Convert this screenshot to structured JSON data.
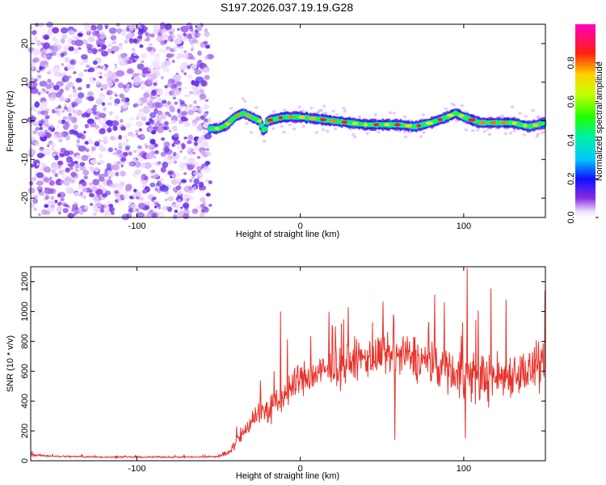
{
  "title": "S197.2026.037.19.19.G28",
  "chart_data": [
    {
      "type": "heatmap",
      "name": "spectrogram",
      "xlabel": "Height of straight line (km)",
      "ylabel": "Frequency (Hz)",
      "xlim": [
        -165,
        150
      ],
      "ylim": [
        -25,
        25
      ],
      "xticks": [
        -100,
        0,
        100
      ],
      "yticks": [
        -20,
        -10,
        0,
        10,
        20
      ],
      "noise_region_x": [
        -165,
        -55
      ],
      "signal_region_x": [
        -55,
        150
      ],
      "signal_ridge": {
        "x": [
          -55,
          -50,
          -45,
          -40,
          -35,
          -30,
          -25,
          -22,
          -20,
          -15,
          -10,
          -5,
          0,
          10,
          20,
          30,
          40,
          50,
          60,
          70,
          80,
          90,
          95,
          100,
          110,
          120,
          130,
          140,
          145,
          150
        ],
        "freq": [
          -2,
          -2,
          -1,
          1,
          2,
          1,
          0,
          -3,
          0,
          0.5,
          1,
          1,
          1,
          0.5,
          0,
          -0.5,
          -1,
          -1,
          -1,
          -1.5,
          -0.5,
          1,
          2,
          1,
          -0.5,
          -0.5,
          -0.5,
          -1.5,
          -1,
          -0.5
        ]
      },
      "colorbar": {
        "label": "Normalized spectral amplitude",
        "range": [
          0,
          1
        ],
        "ticks": [
          "0.0",
          "0.2",
          "0.4",
          "0.6",
          "0.8"
        ]
      }
    },
    {
      "type": "line",
      "name": "snr",
      "xlabel": "Height of straight line (km)",
      "ylabel": "SNR (10 * v/v)",
      "xlim": [
        -165,
        150
      ],
      "ylim": [
        0,
        1300
      ],
      "xticks": [
        -100,
        0,
        100
      ],
      "yticks": [
        0,
        200,
        400,
        600,
        800,
        1000,
        1200
      ],
      "color": "#e8332b",
      "envelope": {
        "x": [
          -165,
          -150,
          -120,
          -90,
          -60,
          -50,
          -45,
          -40,
          -35,
          -30,
          -25,
          -20,
          -15,
          -10,
          -5,
          0,
          10,
          20,
          30,
          40,
          50,
          60,
          70,
          80,
          90,
          100,
          110,
          120,
          130,
          140,
          150
        ],
        "mean": [
          40,
          30,
          25,
          25,
          25,
          30,
          50,
          110,
          180,
          280,
          320,
          340,
          360,
          440,
          500,
          540,
          580,
          620,
          650,
          690,
          700,
          700,
          690,
          650,
          620,
          570,
          560,
          560,
          590,
          600,
          620
        ],
        "spread": [
          15,
          10,
          8,
          8,
          8,
          15,
          30,
          60,
          90,
          130,
          160,
          180,
          200,
          200,
          200,
          200,
          200,
          210,
          220,
          230,
          240,
          250,
          250,
          250,
          260,
          300,
          300,
          280,
          250,
          260,
          260
        ]
      },
      "spikes": [
        {
          "x": -12,
          "y": 1000
        },
        {
          "x": 102,
          "y": 1290
        },
        {
          "x": 88,
          "y": 1060
        },
        {
          "x": 126,
          "y": 1080
        },
        {
          "x": 57,
          "y": 980
        },
        {
          "x": 58,
          "y": 140
        },
        {
          "x": 101,
          "y": 150
        }
      ]
    }
  ]
}
